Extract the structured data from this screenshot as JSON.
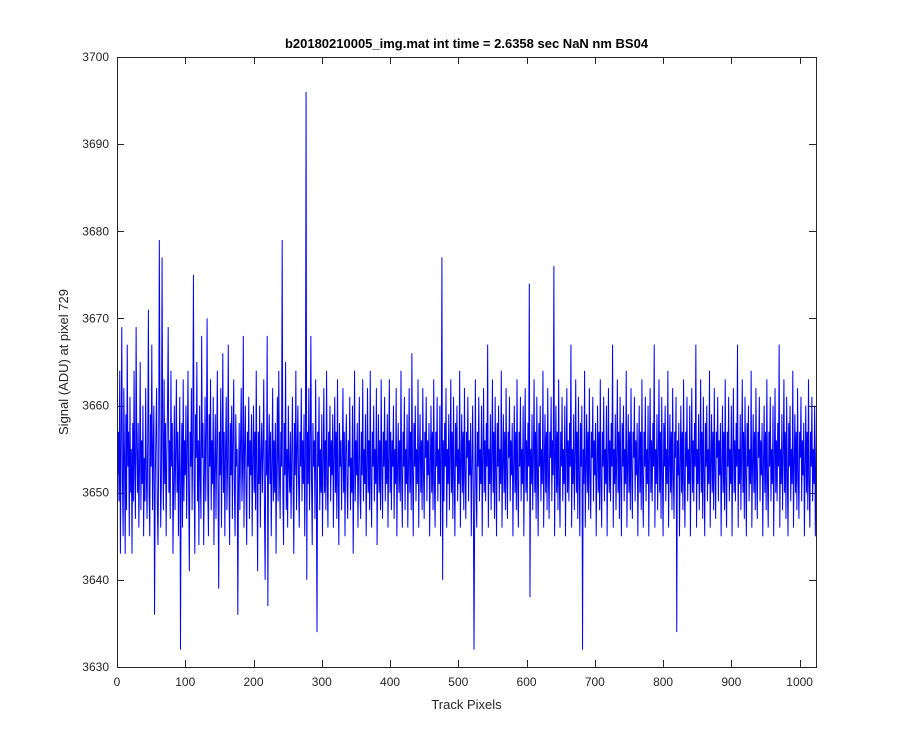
{
  "chart_data": {
    "type": "line",
    "title": "b20180210005_img.mat int time = 2.6358 sec  NaN nm BS04",
    "xlabel": "Track Pixels",
    "ylabel": "Signal (ADU) at pixel 729",
    "xlim": [
      0,
      1024
    ],
    "ylim": [
      3630,
      3700
    ],
    "xticks": [
      0,
      100,
      200,
      300,
      400,
      500,
      600,
      700,
      800,
      900,
      1000
    ],
    "yticks": [
      3630,
      3640,
      3650,
      3660,
      3670,
      3680,
      3690,
      3700
    ],
    "grid": false,
    "series_color": "#0000ff",
    "series": [
      {
        "x_start": 1,
        "x_step": 1,
        "values": [
          3652,
          3657,
          3649,
          3664,
          3643,
          3656,
          3669,
          3651,
          3645,
          3662,
          3654,
          3643,
          3659,
          3648,
          3667,
          3653,
          3657,
          3645,
          3661,
          3650,
          3655,
          3643,
          3658,
          3649,
          3664,
          3652,
          3647,
          3669,
          3655,
          3650,
          3658,
          3646,
          3653,
          3665,
          3648,
          3656,
          3651,
          3660,
          3645,
          3654,
          3649,
          3662,
          3652,
          3647,
          3656,
          3671,
          3650,
          3645,
          3659,
          3653,
          3667,
          3648,
          3655,
          3660,
          3636,
          3651,
          3657,
          3662,
          3649,
          3644,
          3653,
          3679,
          3658,
          3646,
          3651,
          3677,
          3656,
          3648,
          3663,
          3651,
          3658,
          3645,
          3654,
          3660,
          3669,
          3650,
          3656,
          3647,
          3664,
          3653,
          3658,
          3643,
          3651,
          3660,
          3648,
          3655,
          3663,
          3650,
          3657,
          3645,
          3654,
          3661,
          3632,
          3652,
          3658,
          3646,
          3663,
          3649,
          3656,
          3652,
          3660,
          3647,
          3655,
          3664,
          3650,
          3641,
          3657,
          3653,
          3662,
          3648,
          3656,
          3675,
          3651,
          3643,
          3659,
          3654,
          3665,
          3649,
          3656,
          3644,
          3660,
          3652,
          3647,
          3668,
          3654,
          3658,
          3644,
          3652,
          3661,
          3649,
          3657,
          3670,
          3650,
          3645,
          3659,
          3653,
          3663,
          3648,
          3656,
          3651,
          3661,
          3644,
          3653,
          3659,
          3647,
          3655,
          3664,
          3650,
          3639,
          3657,
          3652,
          3662,
          3646,
          3654,
          3666,
          3650,
          3657,
          3645,
          3655,
          3661,
          3648,
          3653,
          3667,
          3651,
          3644,
          3658,
          3652,
          3660,
          3647,
          3656,
          3663,
          3650,
          3645,
          3659,
          3653,
          3655,
          3636,
          3651,
          3658,
          3648,
          3656,
          3662,
          3649,
          3653,
          3668,
          3646,
          3655,
          3660,
          3651,
          3644,
          3657,
          3653,
          3661,
          3647,
          3656,
          3652,
          3659,
          3645,
          3654,
          3660,
          3650,
          3657,
          3648,
          3664,
          3652,
          3641,
          3657,
          3651,
          3660,
          3646,
          3654,
          3658,
          3650,
          3655,
          3663,
          3648,
          3640,
          3656,
          3652,
          3668,
          3637,
          3654,
          3659,
          3651,
          3657,
          3645,
          3653,
          3662,
          3649,
          3656,
          3650,
          3658,
          3643,
          3654,
          3661,
          3649,
          3664,
          3652,
          3647,
          3657,
          3653,
          3679,
          3650,
          3644,
          3658,
          3652,
          3665,
          3648,
          3655,
          3646,
          3660,
          3653,
          3650,
          3657,
          3647,
          3654,
          3661,
          3651,
          3643,
          3658,
          3652,
          3664,
          3648,
          3655,
          3660,
          3651,
          3646,
          3657,
          3653,
          3662,
          3649,
          3656,
          3651,
          3659,
          3645,
          3654,
          3696,
          3640,
          3657,
          3651,
          3662,
          3648,
          3655,
          3668,
          3651,
          3644,
          3658,
          3653,
          3656,
          3647,
          3663,
          3651,
          3634,
          3657,
          3653,
          3661,
          3648,
          3655,
          3650,
          3659,
          3645,
          3653,
          3662,
          3650,
          3656,
          3648,
          3664,
          3652,
          3646,
          3657,
          3653,
          3660,
          3649,
          3656,
          3652,
          3659,
          3646,
          3654,
          3661,
          3650,
          3657,
          3647,
          3663,
          3651,
          3644,
          3658,
          3653,
          3656,
          3648,
          3654,
          3662,
          3650,
          3657,
          3645,
          3655,
          3659,
          3651,
          3647,
          3656,
          3653,
          3661,
          3648,
          3654,
          3650,
          3660,
          3643,
          3652,
          3664,
          3649,
          3656,
          3652,
          3658,
          3646,
          3653,
          3661,
          3650,
          3647,
          3657,
          3652,
          3663,
          3649,
          3655,
          3651,
          3659,
          3645,
          3653,
          3662,
          3650,
          3656,
          3648,
          3664,
          3651,
          3646,
          3657,
          3653,
          3660,
          3649,
          3655,
          3651,
          3662,
          3644,
          3653,
          3659,
          3650,
          3656,
          3648,
          3663,
          3652,
          3647,
          3657,
          3653,
          3661,
          3649,
          3656,
          3651,
          3659,
          3646,
          3654,
          3663,
          3650,
          3657,
          3648,
          3656,
          3653,
          3660,
          3647,
          3655,
          3651,
          3662,
          3645,
          3653,
          3658,
          3650,
          3656,
          3649,
          3664,
          3652,
          3646,
          3657,
          3653,
          3661,
          3648,
          3655,
          3651,
          3659,
          3646,
          3653,
          3662,
          3650,
          3657,
          3648,
          3666,
          3652,
          3645,
          3658,
          3653,
          3660,
          3649,
          3655,
          3651,
          3663,
          3646,
          3654,
          3659,
          3650,
          3656,
          3648,
          3662,
          3652,
          3647,
          3657,
          3654,
          3661,
          3649,
          3656,
          3652,
          3658,
          3645,
          3653,
          3660,
          3650,
          3657,
          3648,
          3663,
          3651,
          3646,
          3657,
          3653,
          3661,
          3649,
          3655,
          3651,
          3660,
          3645,
          3654,
          3677,
          3640,
          3656,
          3649,
          3658,
          3653,
          3662,
          3646,
          3655,
          3651,
          3659,
          3648,
          3654,
          3663,
          3650,
          3657,
          3647,
          3661,
          3652,
          3645,
          3658,
          3653,
          3660,
          3649,
          3655,
          3651,
          3664,
          3646,
          3653,
          3659,
          3650,
          3657,
          3648,
          3662,
          3652,
          3647,
          3657,
          3654,
          3661,
          3649,
          3656,
          3652,
          3658,
          3645,
          3653,
          3660,
          3650,
          3632,
          3648,
          3663,
          3651,
          3646,
          3657,
          3653,
          3661,
          3649,
          3655,
          3651,
          3660,
          3645,
          3654,
          3662,
          3650,
          3656,
          3649,
          3658,
          3653,
          3667,
          3646,
          3655,
          3651,
          3659,
          3648,
          3654,
          3663,
          3650,
          3657,
          3647,
          3661,
          3652,
          3645,
          3658,
          3653,
          3660,
          3649,
          3655,
          3651,
          3664,
          3646,
          3653,
          3659,
          3650,
          3657,
          3648,
          3662,
          3652,
          3647,
          3657,
          3654,
          3661,
          3649,
          3656,
          3652,
          3658,
          3645,
          3653,
          3660,
          3650,
          3657,
          3648,
          3663,
          3651,
          3646,
          3657,
          3653,
          3661,
          3649,
          3655,
          3651,
          3660,
          3645,
          3654,
          3662,
          3650,
          3656,
          3649,
          3658,
          3653,
          3674,
          3638,
          3655,
          3651,
          3659,
          3648,
          3654,
          3663,
          3650,
          3657,
          3647,
          3661,
          3652,
          3645,
          3658,
          3653,
          3660,
          3649,
          3655,
          3651,
          3664,
          3646,
          3653,
          3659,
          3650,
          3657,
          3648,
          3662,
          3652,
          3647,
          3657,
          3654,
          3661,
          3649,
          3656,
          3652,
          3676,
          3645,
          3653,
          3660,
          3650,
          3657,
          3648,
          3663,
          3651,
          3646,
          3657,
          3653,
          3661,
          3649,
          3655,
          3651,
          3660,
          3645,
          3654,
          3662,
          3650,
          3656,
          3649,
          3658,
          3653,
          3667,
          3646,
          3655,
          3651,
          3659,
          3648,
          3654,
          3663,
          3650,
          3657,
          3647,
          3661,
          3652,
          3645,
          3658,
          3653,
          3660,
          3632,
          3655,
          3651,
          3664,
          3646,
          3653,
          3659,
          3650,
          3657,
          3648,
          3662,
          3652,
          3647,
          3657,
          3654,
          3661,
          3649,
          3656,
          3652,
          3658,
          3645,
          3653,
          3660,
          3650,
          3657,
          3648,
          3663,
          3651,
          3646,
          3657,
          3653,
          3661,
          3649,
          3655,
          3651,
          3660,
          3645,
          3654,
          3662,
          3650,
          3656,
          3649,
          3658,
          3653,
          3667,
          3646,
          3655,
          3651,
          3659,
          3648,
          3654,
          3663,
          3650,
          3657,
          3647,
          3661,
          3652,
          3645,
          3658,
          3653,
          3660,
          3649,
          3655,
          3651,
          3664,
          3646,
          3653,
          3659,
          3650,
          3657,
          3648,
          3662,
          3652,
          3647,
          3657,
          3654,
          3661,
          3649,
          3656,
          3652,
          3658,
          3645,
          3653,
          3660,
          3650,
          3657,
          3648,
          3663,
          3651,
          3646,
          3657,
          3653,
          3661,
          3649,
          3655,
          3651,
          3660,
          3645,
          3654,
          3662,
          3650,
          3656,
          3649,
          3658,
          3653,
          3667,
          3646,
          3655,
          3651,
          3659,
          3648,
          3654,
          3663,
          3650,
          3657,
          3647,
          3661,
          3652,
          3645,
          3658,
          3653,
          3660,
          3649,
          3655,
          3651,
          3664,
          3646,
          3653,
          3659,
          3650,
          3657,
          3648,
          3662,
          3652,
          3647,
          3657,
          3654,
          3661,
          3634,
          3656,
          3652,
          3658,
          3645,
          3653,
          3660,
          3650,
          3657,
          3648,
          3663,
          3651,
          3646,
          3657,
          3653,
          3661,
          3649,
          3655,
          3651,
          3660,
          3645,
          3654,
          3662,
          3650,
          3656,
          3649,
          3658,
          3653,
          3667,
          3646,
          3655,
          3651,
          3659,
          3648,
          3654,
          3663,
          3650,
          3657,
          3647,
          3661,
          3652,
          3645,
          3658,
          3653,
          3660,
          3649,
          3655,
          3651,
          3664,
          3646,
          3653,
          3659,
          3650,
          3657,
          3648,
          3662,
          3652,
          3647,
          3657,
          3654,
          3661,
          3649,
          3656,
          3652,
          3658,
          3645,
          3653,
          3660,
          3650,
          3657,
          3648,
          3663,
          3651,
          3646,
          3657,
          3653,
          3661,
          3649,
          3655,
          3651,
          3660,
          3645,
          3654,
          3662,
          3650,
          3656,
          3649,
          3658,
          3653,
          3667,
          3646,
          3655,
          3651,
          3659,
          3648,
          3654,
          3663,
          3650,
          3657,
          3647,
          3661,
          3652,
          3645,
          3658,
          3653,
          3660,
          3649,
          3655,
          3651,
          3664,
          3646,
          3653,
          3659,
          3650,
          3657,
          3648,
          3662,
          3652,
          3647,
          3657,
          3654,
          3661,
          3649,
          3656,
          3652,
          3658,
          3645,
          3653,
          3660,
          3650,
          3657,
          3648,
          3663,
          3651,
          3646,
          3657,
          3653,
          3661,
          3649,
          3655,
          3651,
          3660,
          3645,
          3654,
          3662,
          3650,
          3656,
          3649,
          3658,
          3653,
          3667,
          3646,
          3655,
          3651,
          3659,
          3648,
          3654,
          3663,
          3650,
          3657,
          3647,
          3661,
          3652,
          3645,
          3658,
          3653,
          3660,
          3649,
          3655,
          3651,
          3664,
          3646,
          3653,
          3659,
          3650,
          3657,
          3648,
          3662,
          3652,
          3647,
          3657,
          3654,
          3661,
          3649,
          3656,
          3652,
          3658,
          3645,
          3653,
          3660,
          3650,
          3657,
          3648,
          3663,
          3651,
          3646,
          3657,
          3653,
          3661,
          3649,
          3655,
          3651,
          3660,
          3645,
          3654,
          3662,
          3650,
          3656,
          3649,
          3658,
          3653,
          3667,
          3646,
          3655,
          3651,
          3659,
          3648,
          3654,
          3663,
          3650,
          3657,
          3647,
          3661,
          3652,
          3645,
          3658,
          3653,
          3660,
          3649,
          3655,
          3651,
          3664,
          3646,
          3653,
          3659,
          3650,
          3657,
          3648,
          3662,
          3652,
          3647,
          3657,
          3654,
          3661,
          3649,
          3656,
          3652,
          3658,
          3645,
          3653,
          3660,
          3650,
          3657,
          3648,
          3663,
          3651,
          3646,
          3657,
          3653,
          3661,
          3649,
          3655,
          3651,
          3660,
          3645,
          3654,
          3662,
          3650,
          3656,
          3649,
          3658,
          3653,
          3665,
          3643,
          3655,
          3651,
          3659,
          3648,
          3654,
          3663,
          3650,
          3657,
          3647,
          3661,
          3652,
          3645,
          3658,
          3653,
          3660,
          3649,
          3655,
          3651,
          3664,
          3646,
          3653,
          3659,
          3650,
          3657,
          3648,
          3662,
          3652,
          3647,
          3657,
          3654,
          3661,
          3649,
          3656,
          3652,
          3658,
          3645,
          3653,
          3660,
          3650,
          3657,
          3648,
          3663,
          3651,
          3646,
          3657,
          3653,
          3661,
          3649,
          3655,
          3651,
          3660,
          3645,
          3654,
          3662,
          3650,
          3656,
          3649,
          3658,
          3653,
          3665
        ]
      }
    ]
  }
}
